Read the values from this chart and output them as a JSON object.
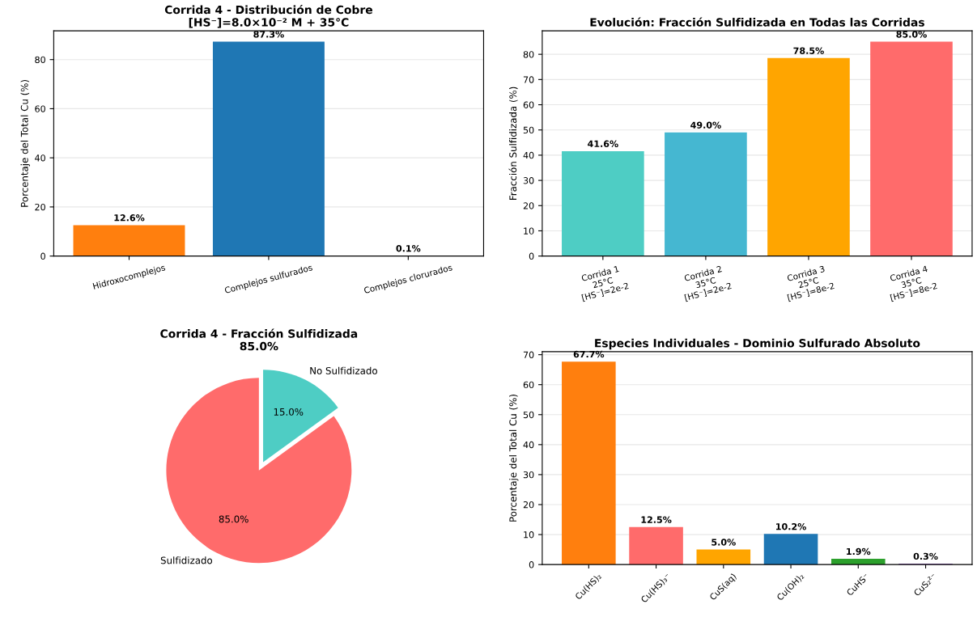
{
  "chart_data": [
    {
      "type": "bar",
      "title": "Corrida 4 - Distribución de Cobre\n[HS⁻]=8.0×10⁻² M + 35°C",
      "ylabel": "Porcentaje del Total Cu (%)",
      "categories": [
        "Hidroxocomplejos",
        "Complejos sulfurados",
        "Complejos clorurados"
      ],
      "values": [
        12.6,
        87.3,
        0.1
      ],
      "colors": [
        "#ff7f0e",
        "#1f77b4",
        "#2ca02c"
      ],
      "value_labels": [
        "12.6%",
        "87.3%",
        "0.1%"
      ],
      "ylim": [
        0,
        91.7
      ],
      "yticks": [
        0,
        20,
        40,
        60,
        80
      ],
      "grid": "y"
    },
    {
      "type": "bar",
      "title": "Evolución: Fracción Sulfidizada en Todas las Corridas",
      "ylabel": "Fracción Sulfidizada (%)",
      "categories": [
        "Corrida 1\n25°C\n[HS⁻]=2e-2",
        "Corrida 2\n35°C\n[HS⁻]=2e-2",
        "Corrida 3\n25°C\n[HS⁻]=8e-2",
        "Corrida 4\n35°C\n[HS⁻]=8e-2"
      ],
      "values": [
        41.6,
        49.0,
        78.5,
        85.0
      ],
      "colors": [
        "#4ecdc4",
        "#45b7d1",
        "#ffa500",
        "#ff6b6b"
      ],
      "value_labels": [
        "41.6%",
        "49.0%",
        "78.5%",
        "85.0%"
      ],
      "ylim": [
        0,
        89.3
      ],
      "yticks": [
        0,
        10,
        20,
        30,
        40,
        50,
        60,
        70,
        80
      ],
      "grid": "y"
    },
    {
      "type": "pie",
      "title": "Corrida 4 - Fracción Sulfidizada\n85.0%",
      "categories": [
        "Sulfidizado",
        "No Sulfidizado"
      ],
      "values": [
        85.0,
        15.0
      ],
      "colors": [
        "#ff6b6b",
        "#4ecdc4"
      ],
      "value_labels": [
        "85.0%",
        "15.0%"
      ]
    },
    {
      "type": "bar",
      "title": "Especies Individuales - Dominio Sulfurado Absoluto",
      "ylabel": "Porcentaje del Total Cu (%)",
      "categories": [
        "Cu(HS)₂",
        "Cu(HS)₃⁻",
        "CuS(aq)",
        "Cu(OH)₂",
        "CuHS⁻",
        "CuS₂²⁻"
      ],
      "values": [
        67.7,
        12.5,
        5.0,
        10.2,
        1.9,
        0.3
      ],
      "colors": [
        "#ff7f0e",
        "#ff6b6b",
        "#ffa500",
        "#1f77b4",
        "#2ca02c",
        "#9467bd"
      ],
      "value_labels": [
        "67.7%",
        "12.5%",
        "5.0%",
        "10.2%",
        "1.9%",
        "0.3%"
      ],
      "ylim": [
        0,
        71
      ],
      "yticks": [
        0,
        10,
        20,
        30,
        40,
        50,
        60,
        70
      ],
      "grid": "y"
    }
  ]
}
